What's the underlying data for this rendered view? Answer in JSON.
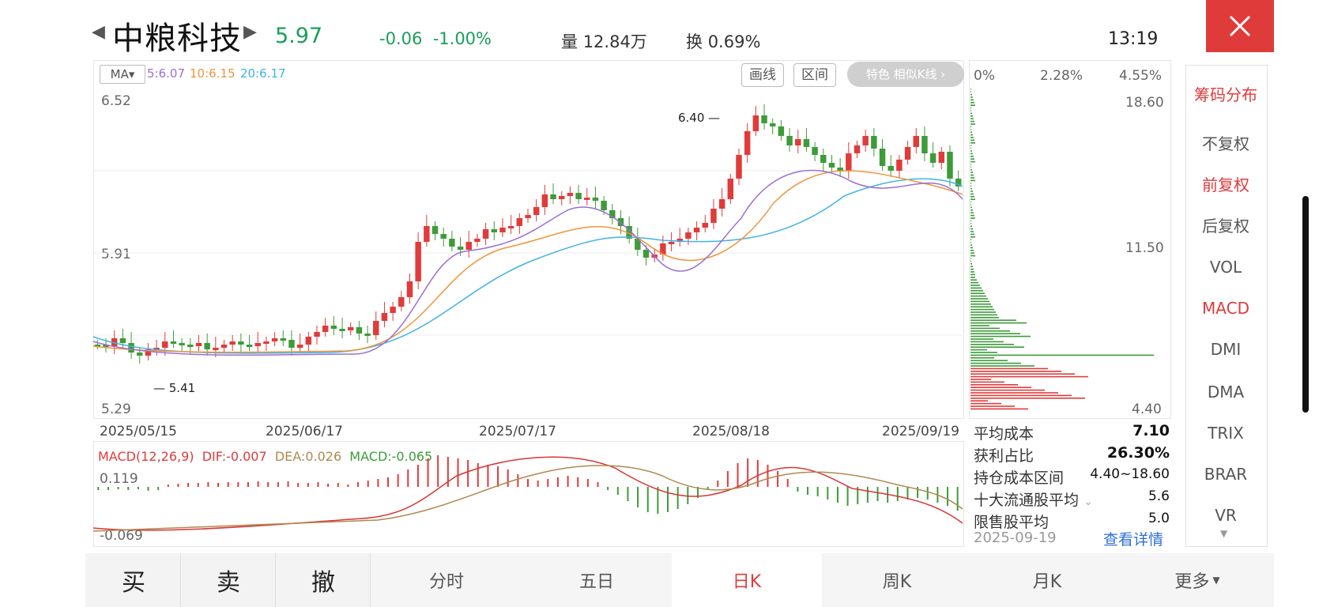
{
  "header": {
    "stock_name": "中粮科技",
    "price": "5.97",
    "change": "-0.06",
    "change_pct": "-1.00%",
    "volume_label": "量",
    "volume": "12.84万",
    "turnover_label": "换",
    "turnover": "0.69%",
    "time": "13:19"
  },
  "ma": {
    "selector": "MA",
    "ma5": "5:6.07",
    "ma10": "10:6.15",
    "ma20": "20:6.17"
  },
  "toolbar": {
    "draw_line": "画线",
    "interval": "区间",
    "feature": "特色 相似K线 ›"
  },
  "price_axis": {
    "high": "6.52",
    "mid": "5.91",
    "low": "5.29",
    "max_marker": "6.40",
    "min_marker": "5.41"
  },
  "dates": [
    "2025/05/15",
    "2025/06/17",
    "2025/07/17",
    "2025/08/18",
    "2025/09/19"
  ],
  "macd": {
    "title": "MACD(12,26,9)",
    "dif": "DIF:-0.007",
    "dea": "DEA:0.026",
    "macd": "MACD:-0.065",
    "top": "0.119",
    "bottom": "-0.069"
  },
  "chip": {
    "pct0": "0%",
    "pct1": "2.28%",
    "pct2": "4.55%",
    "p_high": "18.60",
    "p_mid": "11.50",
    "p_low": "4.40",
    "avg_cost_label": "平均成本",
    "avg_cost": "7.10",
    "profit_label": "获利占比",
    "profit": "26.30%",
    "range_label": "持仓成本区间",
    "range": "4.40~18.60",
    "top10_label": "十大流通股平均",
    "top10": "5.6",
    "restricted_label": "限售股平均",
    "restricted": "5.0",
    "date": "2025-09-19",
    "detail_link": "查看详情"
  },
  "right_menu": [
    "筹码分布",
    "不复权",
    "前复权",
    "后复权",
    "VOL",
    "MACD",
    "DMI",
    "DMA",
    "TRIX",
    "BRAR",
    "VR"
  ],
  "bottom": {
    "buy": "买",
    "sell": "卖",
    "cancel": "撤",
    "tabs": [
      "分时",
      "五日",
      "日K",
      "周K",
      "月K",
      "更多"
    ]
  },
  "colors": {
    "up": "#e03b3b",
    "down": "#3e9b3a",
    "ma5": "#9b6fd4",
    "ma10": "#f0943a",
    "ma20": "#3fb3e6",
    "price_green": "#1a9e5a"
  }
}
